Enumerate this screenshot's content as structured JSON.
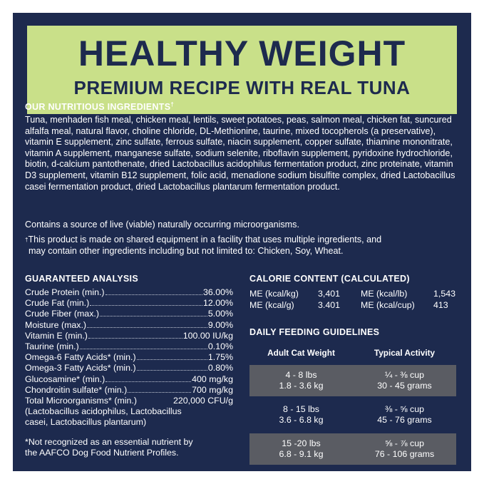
{
  "banner": {
    "title": "HEALTHY WEIGHT",
    "subtitle": "PREMIUM RECIPE WITH REAL TUNA"
  },
  "ingredients": {
    "heading": "OUR NUTRITIOUS INGREDIENTS",
    "heading_mark": "†",
    "text": "Tuna, menhaden fish meal, chicken meal, lentils, sweet potatoes, peas, salmon meal, chicken fat, suncured alfalfa meal, natural flavor, choline chloride, DL-Methionine, taurine, mixed tocopherols (a preservative), vitamin E supplement, zinc sulfate, ferrous sulfate, niacin supplement, copper sulfate, thiamine mononitrate, vitamin A supplement, manganese sulfate, sodium selenite, riboflavin supplement, pyridoxine hydrochloride, biotin, d-calcium pantothenate, dried Lactobacillus acidophilus fermentation product, zinc proteinate, vitamin D3 supplement, vitamin B12 supplement, folic acid, menadione sodium bisulfite complex, dried Lactobacillus casei fermentation product, dried Lactobacillus plantarum fermentation product.",
    "live_note": "Contains a source of live (viable) naturally occurring microorganisms.",
    "facility_mark": "†",
    "facility_line1": "This product is made on shared equipment in a facility that uses multiple ingredients, and",
    "facility_line2": "may contain other ingredients including but not limited to: Chicken, Soy, Wheat."
  },
  "analysis": {
    "heading": "GUARANTEED ANALYSIS",
    "rows": [
      {
        "label": "Crude Protein (min.)",
        "value": "36.00%"
      },
      {
        "label": "Crude Fat (min.)",
        "value": "12.00%"
      },
      {
        "label": "Crude Fiber (max.)",
        "value": "5.00%"
      },
      {
        "label": "Moisture (max.)",
        "value": "9.00%"
      },
      {
        "label": "Vitamin E (min.)",
        "value": "100.00 IU/kg"
      },
      {
        "label": "Taurine (min.)",
        "value": "0.10%"
      },
      {
        "label": "Omega-6 Fatty Acids* (min.)",
        "value": "1.75%"
      },
      {
        "label": "Omega-3 Fatty Acids* (min.)",
        "value": "0.80%"
      },
      {
        "label": "Glucosamine* (min.)",
        "value": "400 mg/kg"
      },
      {
        "label": "Chondroitin sulfate* (min.)",
        "value": "700 mg/kg"
      },
      {
        "label": "Total Microorganisms* (min.)",
        "value": "220,000 CFU/g"
      }
    ],
    "micro_line1": "(Lactobacillus acidophilus, Lactobacillus",
    "micro_line2": "casei, Lactobacillus plantarum)",
    "footnote_line1": "*Not recognized as an essential nutrient by",
    "footnote_line2": "the AAFCO Dog Food Nutrient Profiles."
  },
  "calorie": {
    "heading": "CALORIE CONTENT (CALCULATED)",
    "cells": [
      {
        "label": "ME (kcal/kg)",
        "value": "3,401"
      },
      {
        "label": "ME (kcal/lb)",
        "value": "1,543"
      },
      {
        "label": "ME (kcal/g)",
        "value": "3.401"
      },
      {
        "label": "ME (kcal/cup)",
        "value": "413"
      }
    ]
  },
  "feeding": {
    "heading": "DAILY FEEDING GUIDELINES",
    "col1": "Adult Cat Weight",
    "col2": "Typical Activity",
    "rows": [
      {
        "w1": "4 - 8 lbs",
        "w2": "1.8 - 3.6 kg",
        "a1": "¼ - ⅜ cup",
        "a2": "30 - 45 grams"
      },
      {
        "w1": "8 - 15 lbs",
        "w2": "3.6 - 6.8 kg",
        "a1": "⅜ - ⅝ cup",
        "a2": "45 - 76 grams"
      },
      {
        "w1": "15 -20 lbs",
        "w2": "6.8 - 9.1 kg",
        "a1": "⅝ - ⅞ cup",
        "a2": "76 - 106 grams"
      }
    ]
  },
  "colors": {
    "panel_bg": "#1d2a4e",
    "banner_bg": "#c9e089",
    "banner_text": "#1d2a4e",
    "table_row_bg": "#5a5c63"
  }
}
